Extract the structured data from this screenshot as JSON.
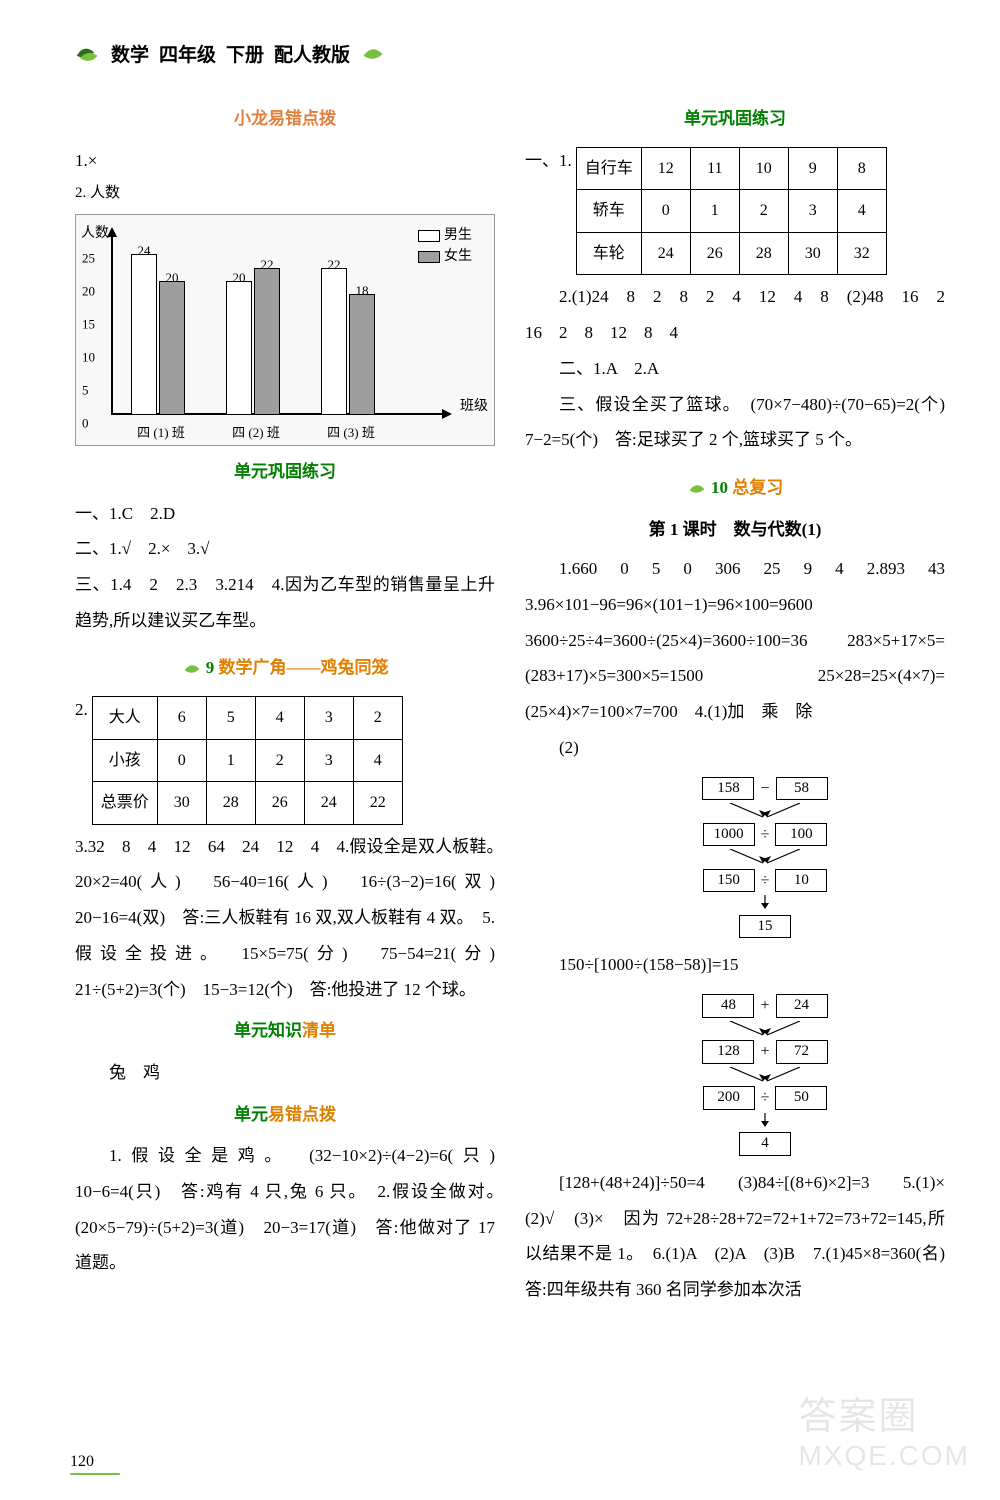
{
  "header": {
    "subject": "数学",
    "grade": "四年级",
    "volume": "下册",
    "edition": "配人教版"
  },
  "leaf_color_dark": "#2a6e1a",
  "leaf_color_light": "#7ac040",
  "left": {
    "sec1_title": "小龙易错点拨",
    "q1": "1.×",
    "chart": {
      "ylabel": "2. 人数",
      "xlabel": "班级",
      "legend_boy": "男生",
      "legend_girl": "女生",
      "boy_color": "#ffffff",
      "girl_color": "#9e9e9e",
      "ymax": 25,
      "yticks": [
        0,
        5,
        10,
        15,
        20,
        25
      ],
      "groups": [
        {
          "label": "四 (1) 班",
          "boy": 24,
          "girl": 20
        },
        {
          "label": "四 (2) 班",
          "boy": 20,
          "girl": 22
        },
        {
          "label": "四 (3) 班",
          "boy": 22,
          "girl": 18
        }
      ]
    },
    "sec2_title": "单元巩固练习",
    "sec2_l1": "一、1.C　2.D",
    "sec2_l2": "二、1.√　2.×　3.√",
    "sec2_l3": "三、1.4　2　2.3　3.214　4.因为乙车型的销售量呈上升趋势,所以建议买乙车型。",
    "chapter9_num": "9",
    "chapter9_name": "数学广角——鸡兔同笼",
    "table9_num": "2.",
    "table9": {
      "rows": [
        {
          "h": "大人",
          "c": [
            "6",
            "5",
            "4",
            "3",
            "2"
          ]
        },
        {
          "h": "小孩",
          "c": [
            "0",
            "1",
            "2",
            "3",
            "4"
          ]
        },
        {
          "h": "总票价",
          "c": [
            "30",
            "28",
            "26",
            "24",
            "22"
          ]
        }
      ]
    },
    "sec9_text": "3.32　8　4　12　64　24　12　4　4.假设全是双人板鞋。　20×2=40(人)　56−40=16(人)　16÷(3−2)=16(双)　20−16=4(双)　答:三人板鞋有 16 双,双人板鞋有 4 双。　5.假设全投进。　15×5=75(分)　75−54=21(分)　21÷(5+2)=3(个)　15−3=12(个)　答:他投进了 12 个球。",
    "sec3_title": "单元知识清单",
    "sec3_l1": "兔　鸡",
    "sec4_title": "单元易错点拨",
    "sec4_text": "1.假设全是鸡。　(32−10×2)÷(4−2)=6(只)　10−6=4(只)　答:鸡有 4 只,兔 6 只。　2.假设全做对。　(20×5−79)÷(5+2)=3(道)　20−3=17(道)　答:他做对了 17 道题。"
  },
  "right": {
    "secA_title": "单元巩固练习",
    "tableA_num": "一、1.",
    "tableA": {
      "rows": [
        {
          "h": "自行车",
          "c": [
            "12",
            "11",
            "10",
            "9",
            "8"
          ]
        },
        {
          "h": "轿车",
          "c": [
            "0",
            "1",
            "2",
            "3",
            "4"
          ]
        },
        {
          "h": "车轮",
          "c": [
            "24",
            "26",
            "28",
            "30",
            "32"
          ]
        }
      ]
    },
    "secA_l2": "2.(1)24　8　2　8　2　4　12　4　8　(2)48　16　2　16　2　8　12　8　4",
    "secA_l3": "二、1.A　2.A",
    "secA_l4": "三、假设全买了篮球。　(70×7−480)÷(70−65)=2(个)　7−2=5(个)　答:足球买了 2 个,篮球买了 5 个。",
    "chapter10_num": "10",
    "chapter10_name": "总复习",
    "lesson1": "第 1 课时　数与代数(1)",
    "secB_l1": "1.660　0　5　0　306　25　9　4　2.893　43　3.96×101−96=96×(101−1)=96×100=9600　3600÷25÷4=3600÷(25×4)=3600÷100=36　283×5+17×5=(283+17)×5=300×5=1500　25×28=25×(4×7)=(25×4)×7=100×7=700　4.(1)加　乘　除",
    "secB_l2_pre": "(2)",
    "flow1": {
      "r1": {
        "a": "158",
        "op": "−",
        "b": "58"
      },
      "r2": {
        "a": "1000",
        "op": "÷",
        "b": "100"
      },
      "r3": {
        "a": "150",
        "op": "÷",
        "b": "10"
      },
      "r4": {
        "a": "15"
      }
    },
    "flow1_expr": "150÷[1000÷(158−58)]=15",
    "flow2": {
      "r1": {
        "a": "48",
        "op": "+",
        "b": "24"
      },
      "r2": {
        "a": "128",
        "op": "+",
        "b": "72"
      },
      "r3": {
        "a": "200",
        "op": "÷",
        "b": "50"
      },
      "r4": {
        "a": "4"
      }
    },
    "secB_l3": "[128+(48+24)]÷50=4　(3)84÷[(8+6)×2]=3　5.(1)×　(2)√　(3)×　因为 72+28÷28+72=72+1+72=73+72=145,所以结果不是 1。　6.(1)A　(2)A　(3)B　7.(1)45×8=360(名)　答:四年级共有 360 名同学参加本次活"
  },
  "page_number": "120",
  "watermark_cn": "答案圈",
  "watermark_en": "MXQE.COM"
}
